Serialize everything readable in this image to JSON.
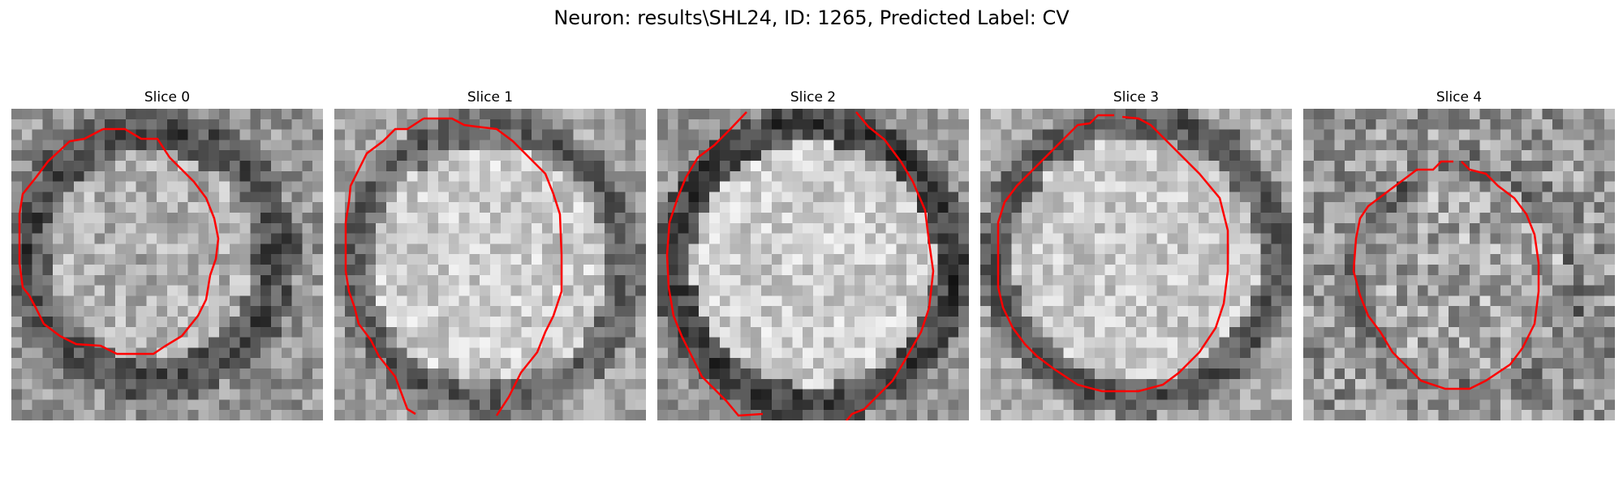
{
  "figure": {
    "title": "Neuron: results\\SHL24, ID: 1265, Predicted Label: CV",
    "contour_color": "#ff0000",
    "panels": [
      {
        "title": "Slice 0",
        "brightness": "medium",
        "ring": "dark, thick on right side"
      },
      {
        "title": "Slice 1",
        "brightness": "bright",
        "ring": "dark"
      },
      {
        "title": "Slice 2",
        "brightness": "bright",
        "ring": "dark, distinct"
      },
      {
        "title": "Slice 3",
        "brightness": "bright",
        "ring": "dark"
      },
      {
        "title": "Slice 4",
        "brightness": "medium",
        "ring": "faint"
      }
    ]
  }
}
